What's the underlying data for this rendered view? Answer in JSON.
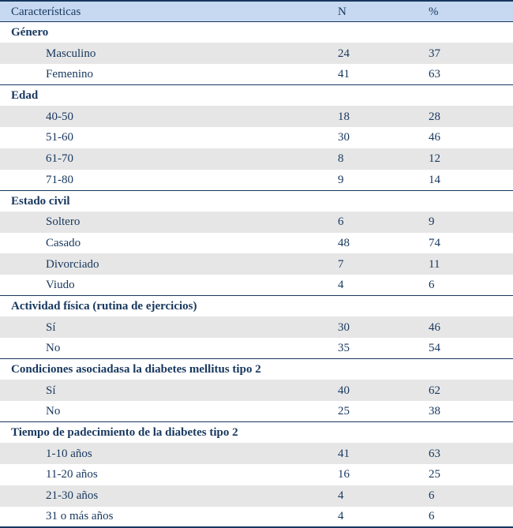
{
  "table": {
    "header": {
      "caracteristicas": "Características",
      "n": "N",
      "pct": "%"
    },
    "sections": [
      {
        "title": "Género",
        "rows": [
          {
            "label": "Masculino",
            "n": "24",
            "pct": "37"
          },
          {
            "label": "Femenino",
            "n": "41",
            "pct": "63"
          }
        ]
      },
      {
        "title": "Edad",
        "rows": [
          {
            "label": "40-50",
            "n": "18",
            "pct": "28"
          },
          {
            "label": "51-60",
            "n": "30",
            "pct": "46"
          },
          {
            "label": "61-70",
            "n": "8",
            "pct": "12"
          },
          {
            "label": "71-80",
            "n": "9",
            "pct": "14"
          }
        ]
      },
      {
        "title": "Estado civil",
        "rows": [
          {
            "label": "Soltero",
            "n": "6",
            "pct": "9"
          },
          {
            "label": "Casado",
            "n": "48",
            "pct": "74"
          },
          {
            "label": "Divorciado",
            "n": "7",
            "pct": "11"
          },
          {
            "label": "Viudo",
            "n": "4",
            "pct": "6"
          }
        ]
      },
      {
        "title": "Actividad física (rutina de ejercicios)",
        "rows": [
          {
            "label": "Sí",
            "n": "30",
            "pct": "46"
          },
          {
            "label": "No",
            "n": "35",
            "pct": "54"
          }
        ]
      },
      {
        "title": "Condiciones asociadasa la diabetes mellitus tipo 2",
        "rows": [
          {
            "label": "Sí",
            "n": "40",
            "pct": "62"
          },
          {
            "label": "No",
            "n": "25",
            "pct": "38"
          }
        ]
      },
      {
        "title": "Tiempo de padecimiento de la diabetes tipo 2",
        "rows": [
          {
            "label": "1-10 años",
            "n": "41",
            "pct": "63"
          },
          {
            "label": "11-20 años",
            "n": "16",
            "pct": "25"
          },
          {
            "label": "21-30 años",
            "n": "4",
            "pct": "6"
          },
          {
            "label": "31 o más años",
            "n": "4",
            "pct": "6"
          }
        ]
      }
    ],
    "colors": {
      "header_bg": "#c6d9f1",
      "band_bg": "#e6e6e6",
      "text": "#17375e",
      "border": "#17375e"
    }
  }
}
